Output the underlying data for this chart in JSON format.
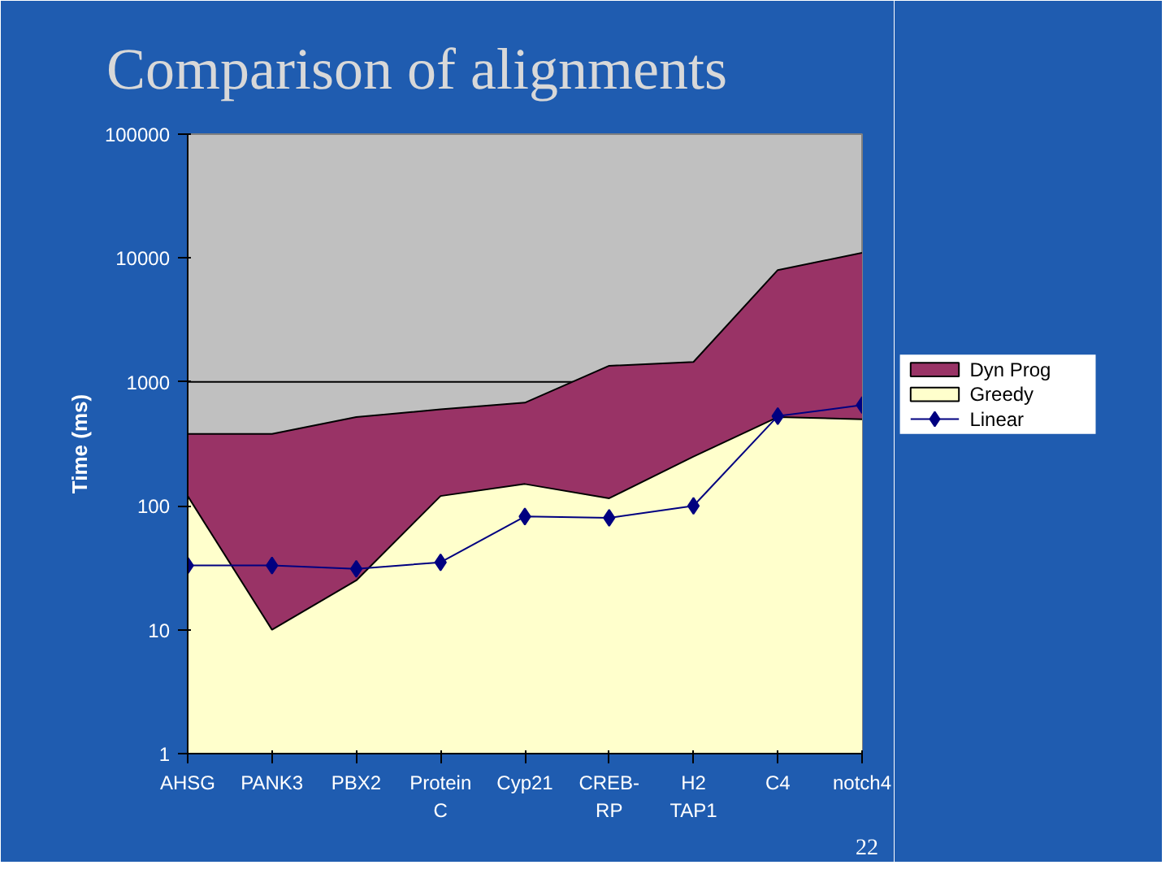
{
  "chart_data": {
    "type": "area",
    "title": "Comparison of alignments",
    "ylabel": "Time (ms)",
    "categories": [
      "AHSG",
      "PANK3",
      "PBX2",
      "Protein\nC",
      "Cyp21",
      "CREB-\nRP",
      "H2\nTAP1",
      "C4",
      "notch4"
    ],
    "series": [
      {
        "name": "Dyn Prog",
        "color": "#993366",
        "values": [
          380,
          380,
          520,
          600,
          680,
          1350,
          1450,
          8000,
          11000
        ]
      },
      {
        "name": "Greedy",
        "color": "#ffffcc",
        "values": [
          120,
          10,
          25,
          120,
          150,
          115,
          250,
          520,
          500
        ]
      },
      {
        "name": "Linear",
        "type": "line",
        "color": "#000080",
        "marker": "diamond",
        "values": [
          33,
          33,
          31,
          35,
          82,
          80,
          100,
          530,
          650
        ]
      }
    ],
    "log": true,
    "ylim": [
      1,
      100000
    ],
    "yticks": [
      1,
      10,
      100,
      1000,
      10000,
      100000
    ],
    "ref_lines": [
      {
        "axis": "y",
        "value": 1000,
        "color": "#000000"
      }
    ],
    "legend": "right",
    "annotations": [
      "22"
    ]
  }
}
